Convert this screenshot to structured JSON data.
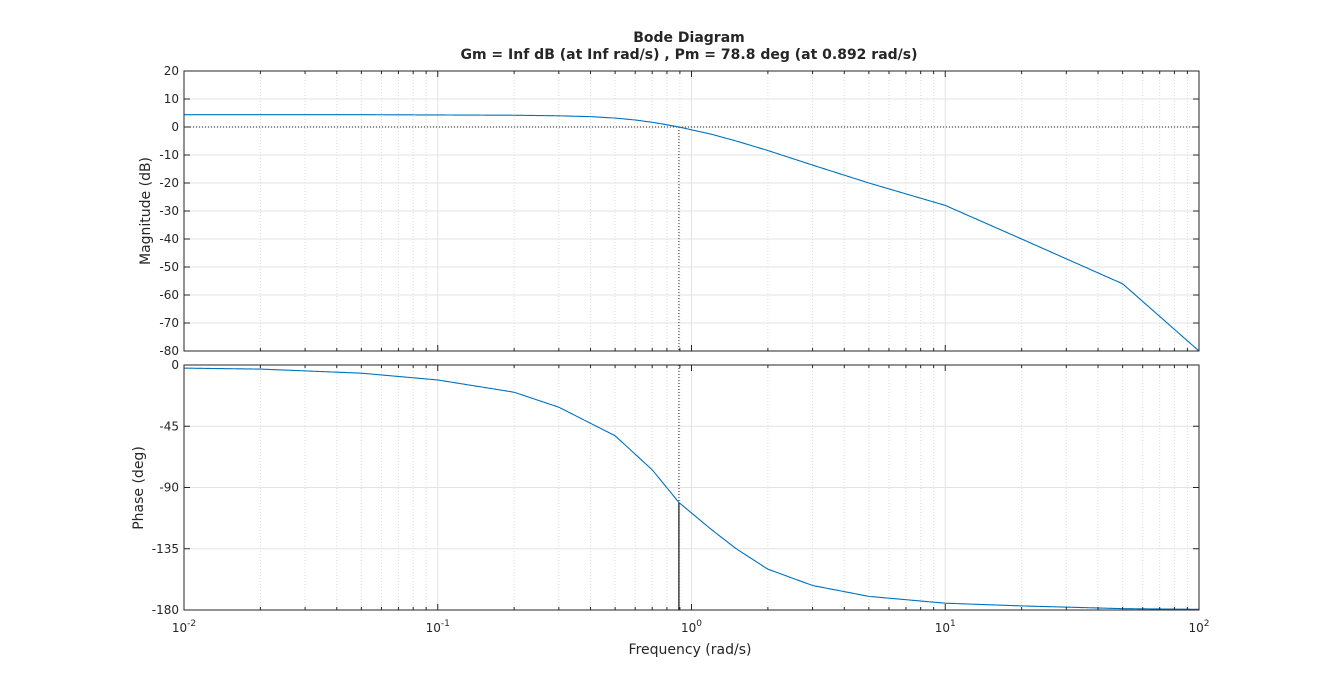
{
  "chart_data": {
    "type": "line",
    "title": "Bode Diagram",
    "subtitle": "Gm = Inf dB (at Inf rad/s) ,  Pm = 78.8 deg (at 0.892 rad/s)",
    "xlabel": "Frequency  (rad/s)",
    "xscale": "log",
    "xlim": [
      0.01,
      100
    ],
    "x_ticks": [
      {
        "base": "10",
        "exp": "-2"
      },
      {
        "base": "10",
        "exp": "-1"
      },
      {
        "base": "10",
        "exp": "0"
      },
      {
        "base": "10",
        "exp": "1"
      },
      {
        "base": "10",
        "exp": "2"
      }
    ],
    "grid": true,
    "line_color": "#0072bd",
    "panels": [
      {
        "name": "magnitude",
        "ylabel": "Magnitude (dB)",
        "ylim": [
          -80,
          20
        ],
        "y_ticks": [
          "20",
          "10",
          "0",
          "-10",
          "-20",
          "-30",
          "-40",
          "-50",
          "-60",
          "-70",
          "-80"
        ],
        "reference_line": 0,
        "x": [
          0.01,
          0.05,
          0.1,
          0.2,
          0.3,
          0.4,
          0.5,
          0.6,
          0.7,
          0.8,
          0.892,
          1.0,
          1.2,
          1.5,
          2.0,
          3.0,
          5.0,
          10.0,
          20.0,
          50.0,
          100.0
        ],
        "y": [
          4.4,
          4.4,
          4.3,
          4.2,
          4.0,
          3.7,
          3.2,
          2.5,
          1.7,
          0.8,
          0.0,
          -1.0,
          -2.6,
          -5.0,
          -8.4,
          -13.6,
          -20.0,
          -28.0,
          -40.0,
          -56.0,
          -80.0
        ]
      },
      {
        "name": "phase",
        "ylabel": "Phase (deg)",
        "ylim": [
          -180,
          0
        ],
        "y_ticks": [
          "0",
          "-45",
          "-90",
          "-135",
          "-180"
        ],
        "reference_line": -180,
        "x": [
          0.01,
          0.02,
          0.05,
          0.1,
          0.2,
          0.3,
          0.5,
          0.7,
          0.892,
          1.2,
          1.5,
          2.0,
          3.0,
          5.0,
          10.0,
          20.0,
          50.0,
          100.0
        ],
        "y": [
          -2.3,
          -3,
          -6,
          -11,
          -20,
          -31,
          -52,
          -77,
          -101,
          -121,
          -135,
          -150,
          -162,
          -170,
          -175,
          -177,
          -179,
          -179.5
        ]
      }
    ],
    "crossover_frequency": 0.892,
    "phase_at_crossover": -101.2
  }
}
